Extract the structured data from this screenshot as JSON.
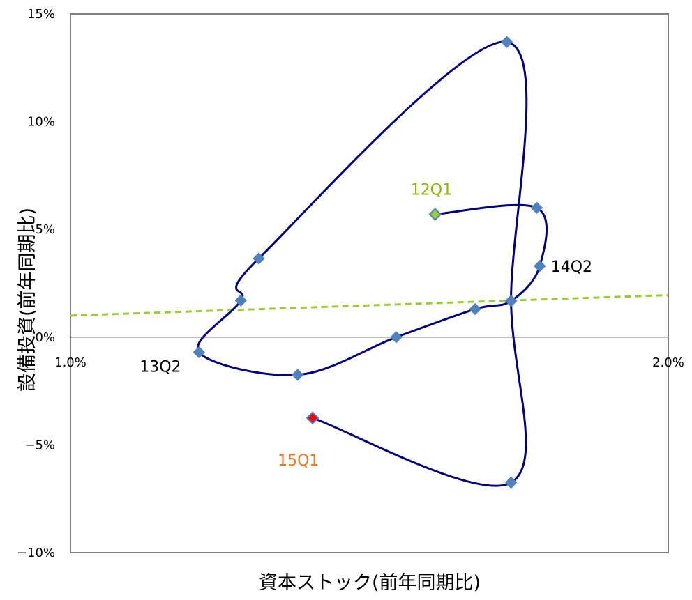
{
  "chart_data": {
    "type": "scatter",
    "title": "",
    "xlabel": "資本ストック(前年同期比)",
    "ylabel": "設備投資(前年同期比)",
    "xlim": [
      0.01,
      0.02
    ],
    "ylim": [
      -0.1,
      0.15
    ],
    "x_ticks": [
      "1.0%",
      "2.0%"
    ],
    "y_ticks": [
      "15%",
      "10%",
      "5%",
      "0%",
      "−5%",
      "−10%"
    ],
    "grid": false,
    "legend": "none",
    "series": [
      {
        "type": "smooth-line-with-markers",
        "color": "#000080",
        "marker_color": "#4F81BD",
        "points": [
          {
            "x": 0.0161,
            "y": 0.057
          },
          {
            "x": 0.0178,
            "y": 0.06
          },
          {
            "x": 0.01785,
            "y": 0.033
          },
          {
            "x": 0.01737,
            "y": 0.0168
          },
          {
            "x": 0.01677,
            "y": 0.013
          },
          {
            "x": 0.01545,
            "y": 0.0
          },
          {
            "x": 0.0138,
            "y": -0.0175
          },
          {
            "x": 0.01215,
            "y": -0.007
          },
          {
            "x": 0.01285,
            "y": 0.017
          },
          {
            "x": 0.01315,
            "y": 0.0365
          },
          {
            "x": 0.0173,
            "y": 0.137
          },
          {
            "x": 0.01737,
            "y": 0.0168
          },
          {
            "x": 0.01737,
            "y": -0.0675
          },
          {
            "x": 0.01405,
            "y": -0.0375
          }
        ]
      },
      {
        "name": "",
        "type": "trend",
        "style": "dashed",
        "color": "#9ACD32",
        "points": [
          {
            "x": 0.01,
            "y": 0.01
          },
          {
            "x": 0.02,
            "y": 0.0195
          }
        ]
      }
    ],
    "annotations": [
      {
        "text": "12Q1",
        "x": 0.0161,
        "y": 0.057,
        "color": "#8DB600"
      },
      {
        "text": "14Q2",
        "x": 0.01785,
        "y": 0.033,
        "color": "#000000"
      },
      {
        "text": "13Q2",
        "x": 0.01215,
        "y": -0.007,
        "color": "#000000"
      },
      {
        "text": "15Q1",
        "x": 0.01405,
        "y": -0.0375,
        "color": "#E87722"
      }
    ],
    "start_marker_color": "#9ACD32",
    "end_marker_color": "#FF0000"
  }
}
